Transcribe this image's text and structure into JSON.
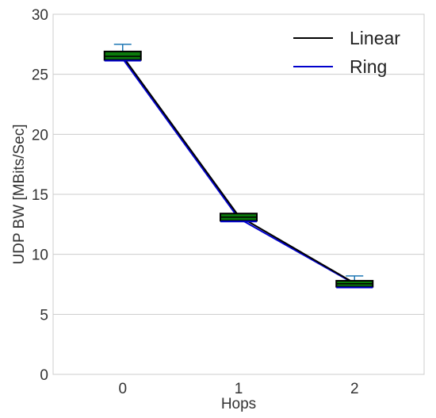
{
  "chart_data": {
    "type": "line",
    "title": "",
    "xlabel": "Hops",
    "ylabel": "UDP BW  [MBits/Sec]",
    "x": [
      0,
      1,
      2
    ],
    "x_tick_labels": [
      "0",
      "1",
      "2"
    ],
    "y_ticks": [
      0,
      5,
      10,
      15,
      20,
      25,
      30
    ],
    "y_tick_labels": [
      "0",
      "5",
      "10",
      "15",
      "20",
      "25",
      "30"
    ],
    "xlim": [
      -0.6,
      2.6
    ],
    "ylim": [
      0,
      30
    ],
    "grid": "horizontal",
    "legend_position": "top-right",
    "series": [
      {
        "name": "Linear",
        "color": "#000000",
        "values": [
          26.5,
          13.2,
          7.6
        ]
      },
      {
        "name": "Ring",
        "color": "#0000cc",
        "values": [
          26.3,
          13.0,
          7.55
        ]
      }
    ],
    "boxes": [
      {
        "x": 0,
        "q1": 26.2,
        "median": 26.5,
        "q3": 26.9,
        "whisker_low": 26.2,
        "whisker_high": 27.5
      },
      {
        "x": 1,
        "q1": 12.8,
        "median": 13.1,
        "q3": 13.4,
        "whisker_low": 12.8,
        "whisker_high": 13.4
      },
      {
        "x": 2,
        "q1": 7.3,
        "median": 7.55,
        "q3": 7.8,
        "whisker_low": 7.3,
        "whisker_high": 8.2
      }
    ],
    "box_colors": {
      "fill": "#0b7a0b",
      "edge": "#000000",
      "ring_edge": "#0000cc",
      "whisker": "#1f77b4"
    }
  }
}
